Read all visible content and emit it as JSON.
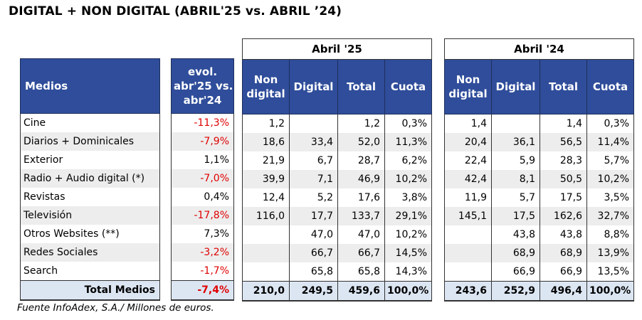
{
  "title": "DIGITAL + NON DIGITAL (ABRIL'25 vs. ABRIL ’24)",
  "source": "Fuente InfoAdex, S.A./ Millones de euros.",
  "headers": {
    "medios": "Medios",
    "evol_l1": "evol.",
    "evol_l2": "abr'25 vs.",
    "evol_l3": "abr'24",
    "period_25": "Abril '25",
    "period_24": "Abril '24",
    "non_l1": "Non",
    "non_l2": "digital",
    "digital": "Digital",
    "total": "Total",
    "cuota": "Cuota"
  },
  "rows": [
    {
      "medio": "Cine",
      "evol": "-11,3%",
      "a25": {
        "non": "1,2",
        "dig": "",
        "tot": "1,2",
        "cuota": "0,3%"
      },
      "a24": {
        "non": "1,4",
        "dig": "",
        "tot": "1,4",
        "cuota": "0,3%"
      }
    },
    {
      "medio": "Diarios + Dominicales",
      "evol": "-7,9%",
      "a25": {
        "non": "18,6",
        "dig": "33,4",
        "tot": "52,0",
        "cuota": "11,3%"
      },
      "a24": {
        "non": "20,4",
        "dig": "36,1",
        "tot": "56,5",
        "cuota": "11,4%"
      }
    },
    {
      "medio": "Exterior",
      "evol": "1,1%",
      "a25": {
        "non": "21,9",
        "dig": "6,7",
        "tot": "28,7",
        "cuota": "6,2%"
      },
      "a24": {
        "non": "22,4",
        "dig": "5,9",
        "tot": "28,3",
        "cuota": "5,7%"
      }
    },
    {
      "medio": "Radio + Audio digital (*)",
      "evol": "-7,0%",
      "a25": {
        "non": "39,9",
        "dig": "7,1",
        "tot": "46,9",
        "cuota": "10,2%"
      },
      "a24": {
        "non": "42,4",
        "dig": "8,1",
        "tot": "50,5",
        "cuota": "10,2%"
      }
    },
    {
      "medio": "Revistas",
      "evol": "0,4%",
      "a25": {
        "non": "12,4",
        "dig": "5,2",
        "tot": "17,6",
        "cuota": "3,8%"
      },
      "a24": {
        "non": "11,9",
        "dig": "5,7",
        "tot": "17,5",
        "cuota": "3,5%"
      }
    },
    {
      "medio": "Televisión",
      "evol": "-17,8%",
      "a25": {
        "non": "116,0",
        "dig": "17,7",
        "tot": "133,7",
        "cuota": "29,1%"
      },
      "a24": {
        "non": "145,1",
        "dig": "17,5",
        "tot": "162,6",
        "cuota": "32,7%"
      }
    },
    {
      "medio": "Otros Websites (**)",
      "evol": "7,3%",
      "a25": {
        "non": "",
        "dig": "47,0",
        "tot": "47,0",
        "cuota": "10,2%"
      },
      "a24": {
        "non": "",
        "dig": "43,8",
        "tot": "43,8",
        "cuota": "8,8%"
      }
    },
    {
      "medio": "Redes Sociales",
      "evol": "-3,2%",
      "a25": {
        "non": "",
        "dig": "66,7",
        "tot": "66,7",
        "cuota": "14,5%"
      },
      "a24": {
        "non": "",
        "dig": "68,9",
        "tot": "68,9",
        "cuota": "13,9%"
      }
    },
    {
      "medio": "Search",
      "evol": "-1,7%",
      "a25": {
        "non": "",
        "dig": "65,8",
        "tot": "65,8",
        "cuota": "14,3%"
      },
      "a24": {
        "non": "",
        "dig": "66,9",
        "tot": "66,9",
        "cuota": "13,5%"
      }
    }
  ],
  "total": {
    "medio": "Total Medios",
    "evol": "-7,4%",
    "a25": {
      "non": "210,0",
      "dig": "249,5",
      "tot": "459,6",
      "cuota": "100,0%"
    },
    "a24": {
      "non": "243,6",
      "dig": "252,9",
      "tot": "496,4",
      "cuota": "100,0%"
    }
  },
  "colors": {
    "header_blue": "#2f4d9a",
    "negative": "#e00000",
    "total_bg": "#dce6f3",
    "shade": "#ededed"
  }
}
